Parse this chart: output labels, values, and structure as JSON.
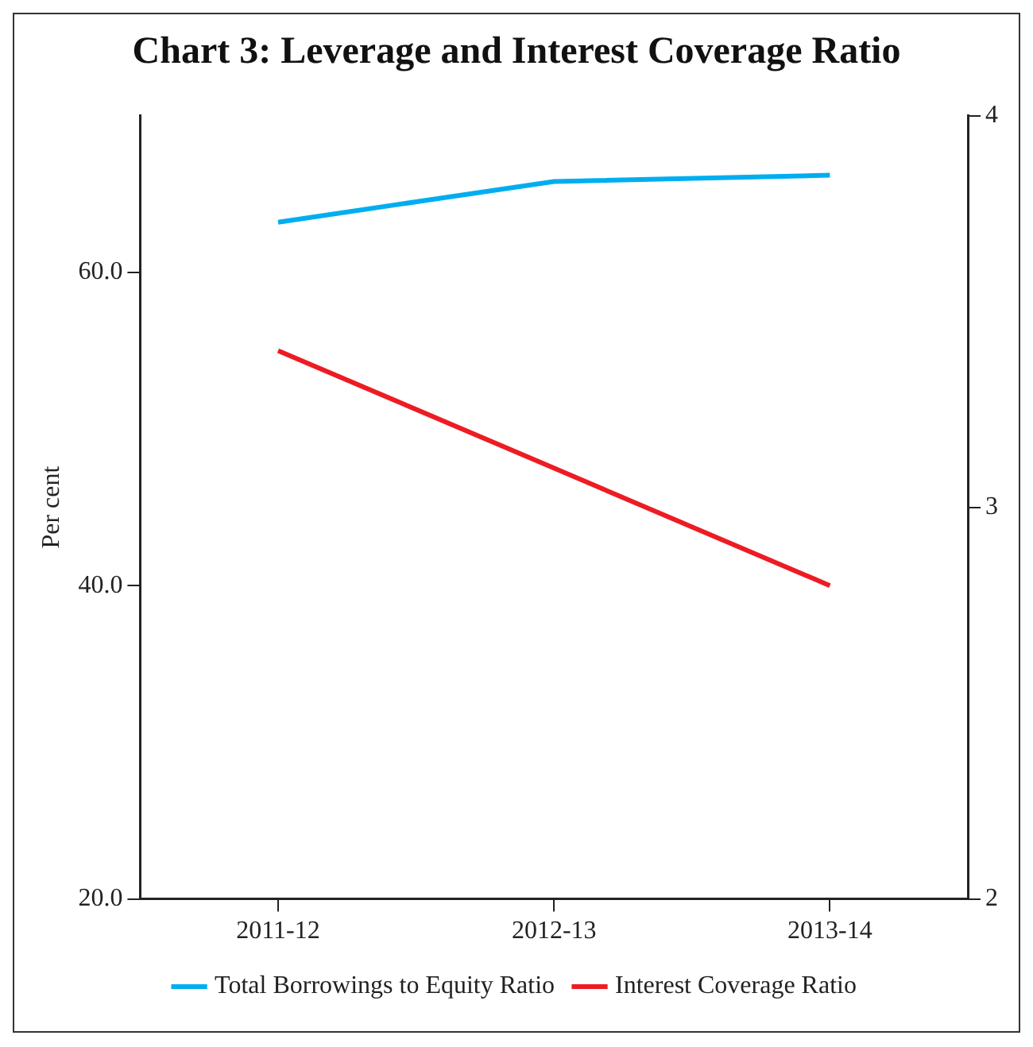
{
  "chart_data": {
    "type": "line",
    "title": "Chart 3: Leverage and Interest Coverage Ratio",
    "ylabel": "Per cent",
    "categories": [
      "2011-12",
      "2012-13",
      "2013-14"
    ],
    "series": [
      {
        "name": "Total Borrowings to Equity Ratio",
        "color": "#00aeef",
        "values": [
          63.2,
          65.8,
          66.2
        ]
      },
      {
        "name": "Interest Coverage Ratio",
        "color": "#ed1c24",
        "values": [
          3.4,
          3.1,
          2.8
        ],
        "axis": "y2"
      }
    ],
    "ylim": [
      20,
      70
    ],
    "yticks": [
      {
        "value": 20,
        "label": "20.0"
      },
      {
        "value": 40,
        "label": "40.0"
      },
      {
        "value": 60,
        "label": "60.0"
      }
    ],
    "y2lim": [
      2,
      4
    ],
    "y2ticks": [
      2,
      3,
      4
    ],
    "grid": false,
    "legend": "bottom",
    "marker": "none",
    "line_style": "solid"
  }
}
